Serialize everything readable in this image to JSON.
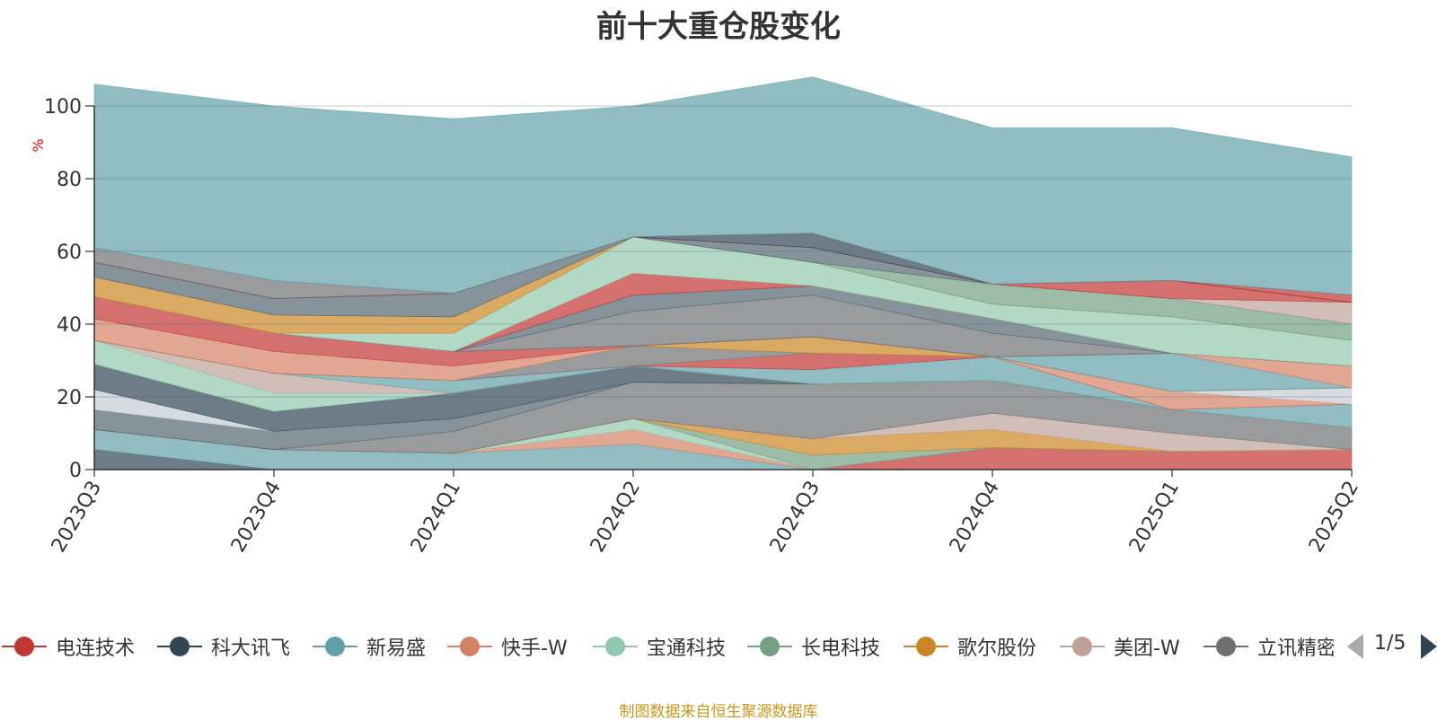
{
  "chart_data": {
    "type": "area",
    "stacked": true,
    "title": "前十大重仓股变化",
    "ylabel": "%",
    "ylim": [
      0,
      100
    ],
    "yticks": [
      0,
      20,
      40,
      60,
      80,
      100
    ],
    "categories": [
      "2023Q3",
      "2023Q4",
      "2024Q1",
      "2024Q2",
      "2024Q3",
      "2024Q4",
      "2025Q1",
      "2025Q2"
    ],
    "series": [
      {
        "name": "电连技术",
        "color": "#c23531",
        "values": [
          0,
          0,
          0,
          0,
          0,
          6,
          5,
          5.5
        ]
      },
      {
        "name": "科大讯飞",
        "color": "#2f4554",
        "values": [
          5.5,
          0,
          0,
          0,
          0,
          0,
          0,
          0
        ]
      },
      {
        "name": "新易盛",
        "color": "#61a0a8",
        "values": [
          5.5,
          5.5,
          4.5,
          7,
          0,
          0,
          0,
          0
        ]
      },
      {
        "name": "快手-W",
        "color": "#d48265",
        "values": [
          0,
          0,
          0,
          4,
          0,
          0,
          0,
          0
        ]
      },
      {
        "name": "宝通科技",
        "color": "#91c7ae",
        "values": [
          0,
          0,
          0,
          3,
          0,
          0,
          0,
          0
        ]
      },
      {
        "name": "长电科技",
        "color": "#749f83",
        "values": [
          0,
          0,
          0,
          0,
          4,
          0,
          0,
          0
        ]
      },
      {
        "name": "歌尔股份",
        "color": "#ca8622",
        "values": [
          0,
          0,
          0,
          0,
          4.5,
          5,
          0,
          0
        ]
      },
      {
        "name": "美团-W",
        "color": "#bda29a",
        "values": [
          0,
          0,
          0,
          0,
          0,
          4.5,
          5,
          0
        ]
      },
      {
        "name": "立讯精密",
        "color": "#6e7074",
        "values": [
          0,
          0,
          6,
          10,
          15,
          9,
          6.5,
          6
        ]
      },
      {
        "name": "",
        "color": "#546570",
        "values": [
          5.5,
          5,
          3.5,
          0,
          0,
          0,
          0,
          0
        ]
      },
      {
        "name": "",
        "color": "#c4ccd3",
        "values": [
          5.5,
          0,
          0,
          0,
          0,
          0,
          0,
          0
        ]
      },
      {
        "name": "",
        "color": "#2f4554",
        "values": [
          7,
          5.5,
          7,
          4.5,
          0,
          0,
          0,
          0
        ]
      },
      {
        "name": "",
        "color": "#91c7ae",
        "values": [
          6.5,
          5,
          0,
          0,
          0,
          0,
          0,
          0
        ]
      },
      {
        "name": "",
        "color": "#bda29a",
        "values": [
          0,
          5.5,
          0,
          0,
          0,
          0,
          0,
          0
        ]
      },
      {
        "name": "",
        "color": "#61a0a8",
        "values": [
          0,
          0,
          3.5,
          0,
          4,
          6.5,
          0,
          6.5
        ]
      },
      {
        "name": "",
        "color": "#c23531",
        "values": [
          0,
          0,
          0,
          0,
          4.5,
          0,
          0,
          0
        ]
      },
      {
        "name": "",
        "color": "#d48265",
        "values": [
          0,
          0,
          0,
          0,
          0,
          0,
          5,
          0
        ]
      },
      {
        "name": "",
        "color": "#c4ccd3",
        "values": [
          0,
          0,
          0,
          0,
          0,
          0,
          0,
          4.5
        ]
      },
      {
        "name": "",
        "color": "#6e7074",
        "values": [
          0,
          0,
          0,
          5.5,
          0,
          0,
          0,
          0
        ]
      },
      {
        "name": "",
        "color": "#ca8622",
        "values": [
          0,
          0,
          0,
          0,
          4.5,
          0,
          0,
          0
        ]
      },
      {
        "name": "",
        "color": "#61a0a8",
        "values": [
          0,
          0,
          0,
          0,
          0,
          0,
          10.5,
          0
        ]
      },
      {
        "name": "",
        "color": "#749f83",
        "values": [
          0,
          0,
          0,
          0,
          0,
          0,
          0,
          0
        ]
      },
      {
        "name": "",
        "color": "#d48265",
        "values": [
          6,
          6,
          4,
          0,
          0,
          0,
          0,
          6
        ]
      },
      {
        "name": "",
        "color": "#c23531",
        "values": [
          6,
          5,
          4,
          0,
          0,
          0,
          0,
          0
        ]
      },
      {
        "name": "",
        "color": "#d48265",
        "values": [
          0,
          0,
          0,
          0,
          0,
          0,
          0,
          0
        ]
      },
      {
        "name": "",
        "color": "#61a0a8",
        "values": [
          0,
          0,
          0,
          0,
          0,
          0,
          0,
          0
        ]
      },
      {
        "name": "",
        "color": "#6e7074",
        "values": [
          0,
          0,
          0,
          9.5,
          11.5,
          6.5,
          0,
          0
        ]
      },
      {
        "name": "",
        "color": "#546570",
        "values": [
          0,
          0,
          0,
          4.5,
          2.5,
          4,
          0,
          0
        ]
      },
      {
        "name": "",
        "color": "#c23531",
        "values": [
          0,
          0,
          0,
          6,
          0,
          0,
          0,
          0
        ]
      },
      {
        "name": "",
        "color": "#91c7ae",
        "values": [
          0,
          0,
          5,
          10,
          6.5,
          4,
          10,
          7
        ]
      },
      {
        "name": "",
        "color": "#ca8622",
        "values": [
          5.5,
          5,
          4.5,
          0,
          0,
          0,
          0,
          0
        ]
      },
      {
        "name": "",
        "color": "#749f83",
        "values": [
          0,
          0,
          0,
          0,
          0,
          5.5,
          5,
          4.5
        ]
      },
      {
        "name": "",
        "color": "#546570",
        "values": [
          4,
          4.5,
          6.5,
          0,
          4,
          0,
          0,
          0
        ]
      },
      {
        "name": "",
        "color": "#bda29a",
        "values": [
          0,
          0,
          0,
          0,
          0,
          0,
          0,
          6
        ]
      },
      {
        "name": "",
        "color": "#c23531",
        "values": [
          0,
          0,
          0,
          0,
          0,
          0,
          5,
          0
        ]
      },
      {
        "name": "",
        "color": "#2f4554",
        "values": [
          0,
          0,
          0,
          0,
          4,
          0,
          0,
          0
        ]
      },
      {
        "name": "",
        "color": "#c23531",
        "values": [
          0,
          0,
          0,
          0,
          0,
          0,
          0,
          2
        ]
      },
      {
        "name": "",
        "color": "#6e7074",
        "values": [
          4,
          5,
          0,
          0,
          0,
          0,
          0,
          0
        ]
      },
      {
        "name": "",
        "color": "#61a0a8",
        "values": [
          45,
          48,
          48,
          36,
          43,
          43,
          42,
          38
        ]
      }
    ],
    "grid": true,
    "legend_position": "bottom"
  },
  "legend": {
    "page": "1/5"
  },
  "footer": {
    "source": "制图数据来自恒生聚源数据库"
  }
}
